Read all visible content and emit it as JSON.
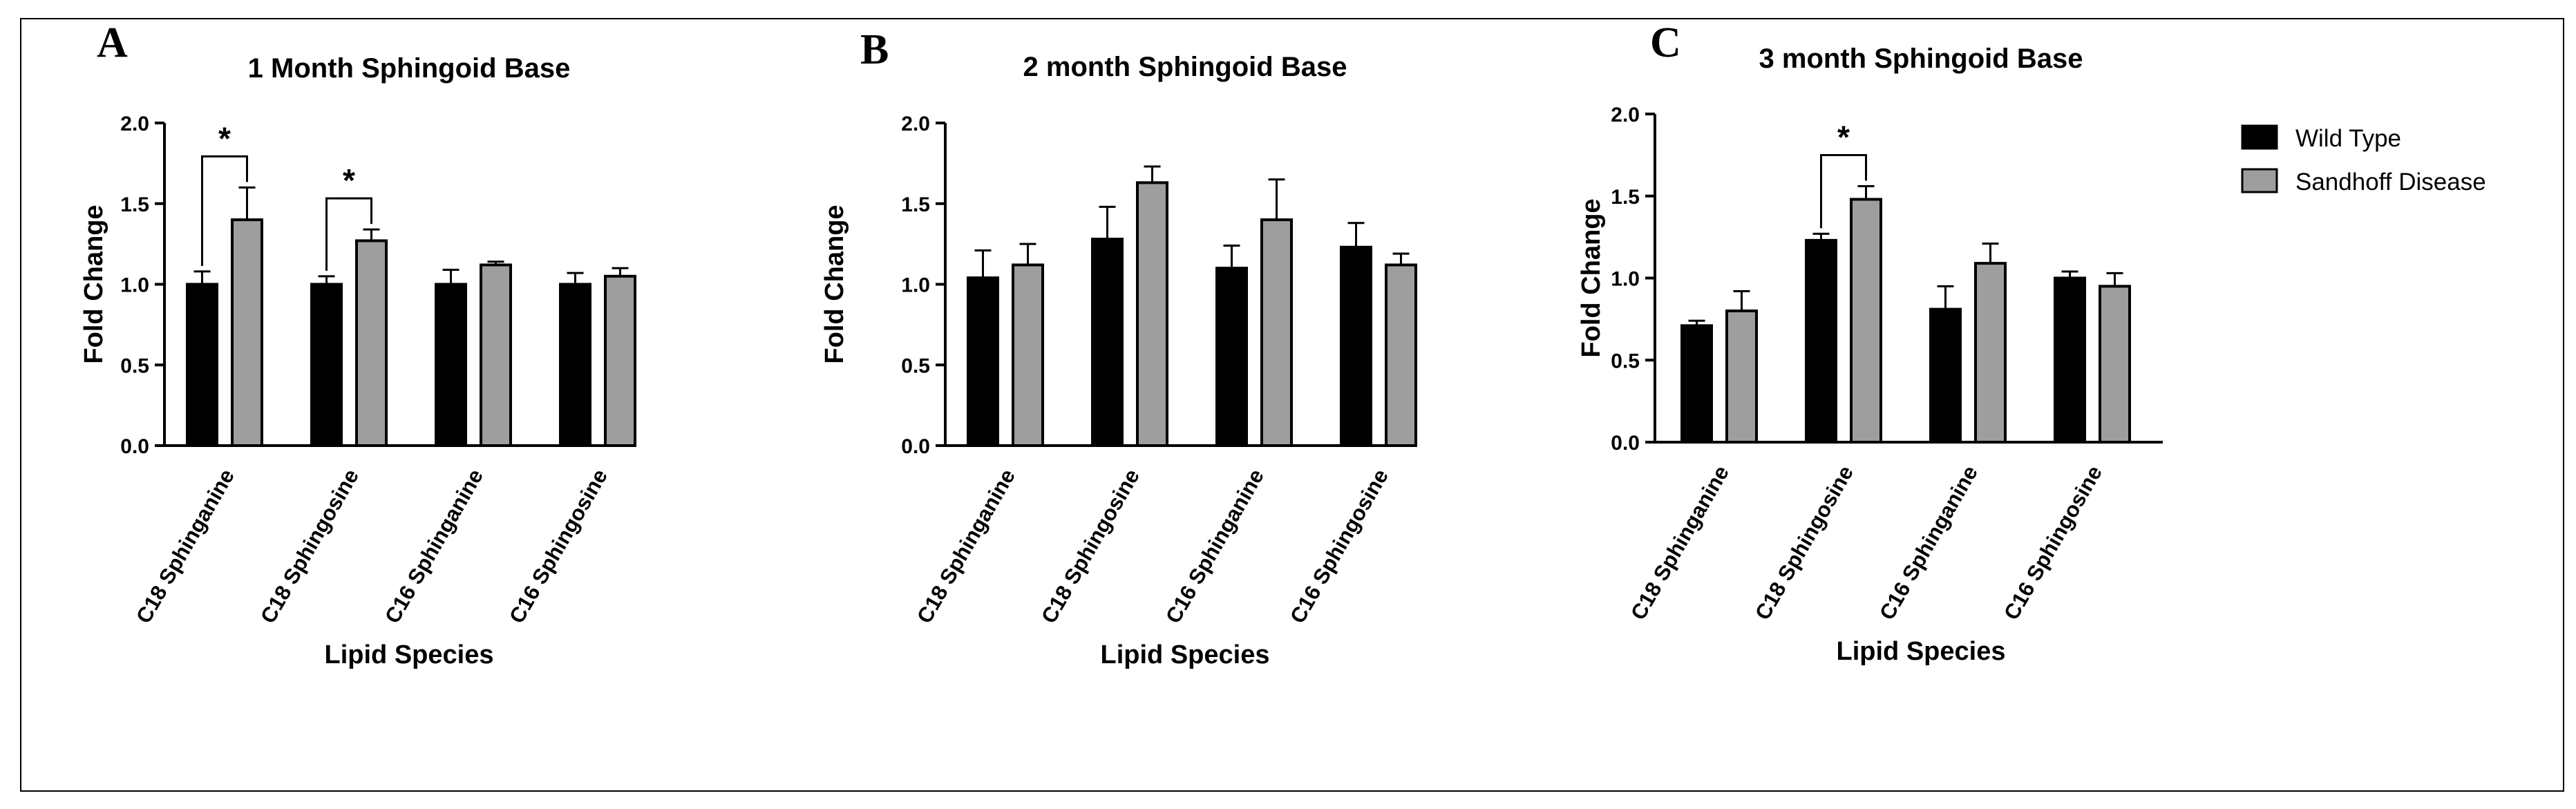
{
  "panels": [
    {
      "letter": "A"
    },
    {
      "letter": "B"
    },
    {
      "letter": "C"
    }
  ],
  "legend": {
    "items": [
      {
        "label": "Wild Type",
        "color": "#000000"
      },
      {
        "label": "Sandhoff Disease",
        "color": "#9e9e9e"
      }
    ]
  },
  "chart_data": [
    {
      "type": "bar",
      "title": "1 Month Sphingoid Base",
      "xlabel": "Lipid Species",
      "ylabel": "Fold Change",
      "ylim": [
        0,
        2.0
      ],
      "yticks": [
        "0.0",
        "0.5",
        "1.0",
        "1.5",
        "2.0"
      ],
      "categories": [
        "C18 Sphinganine",
        "C18 Sphingosine",
        "C16 Sphinganine",
        "C16 Sphingosine"
      ],
      "series": [
        {
          "name": "Wild Type",
          "color": "#000000",
          "values": [
            1.0,
            1.0,
            1.0,
            1.0
          ],
          "errors": [
            0.08,
            0.05,
            0.09,
            0.07
          ]
        },
        {
          "name": "Sandhoff Disease",
          "color": "#9e9e9e",
          "values": [
            1.4,
            1.27,
            1.12,
            1.05
          ],
          "errors": [
            0.2,
            0.07,
            0.02,
            0.05
          ]
        }
      ],
      "significance": [
        {
          "category": 0,
          "label": "*"
        },
        {
          "category": 1,
          "label": "*"
        }
      ]
    },
    {
      "type": "bar",
      "title": "2 month Sphingoid Base",
      "xlabel": "Lipid Species",
      "ylabel": "Fold Change",
      "ylim": [
        0,
        2.0
      ],
      "yticks": [
        "0.0",
        "0.5",
        "1.0",
        "1.5",
        "2.0"
      ],
      "categories": [
        "C18 Sphinganine",
        "C18 Sphingosine",
        "C16 Sphinganine",
        "C16 Sphingosine"
      ],
      "series": [
        {
          "name": "Wild Type",
          "color": "#000000",
          "values": [
            1.04,
            1.28,
            1.1,
            1.23
          ],
          "errors": [
            0.17,
            0.2,
            0.14,
            0.15
          ]
        },
        {
          "name": "Sandhoff Disease",
          "color": "#9e9e9e",
          "values": [
            1.12,
            1.63,
            1.4,
            1.12
          ],
          "errors": [
            0.13,
            0.1,
            0.25,
            0.07
          ]
        }
      ],
      "significance": []
    },
    {
      "type": "bar",
      "title": "3 month Sphingoid Base",
      "xlabel": "Lipid Species",
      "ylabel": "Fold Change",
      "ylim": [
        0,
        2.0
      ],
      "yticks": [
        "0.0",
        "0.5",
        "1.0",
        "1.5",
        "2.0"
      ],
      "categories": [
        "C18 Sphinganine",
        "C18 Sphingosine",
        "C16 Sphinganine",
        "C16 Sphingosine"
      ],
      "series": [
        {
          "name": "Wild Type",
          "color": "#000000",
          "values": [
            0.71,
            1.23,
            0.81,
            1.0
          ],
          "errors": [
            0.03,
            0.04,
            0.14,
            0.04
          ]
        },
        {
          "name": "Sandhoff Disease",
          "color": "#9e9e9e",
          "values": [
            0.8,
            1.48,
            1.09,
            0.95
          ],
          "errors": [
            0.12,
            0.08,
            0.12,
            0.08
          ]
        }
      ],
      "significance": [
        {
          "category": 1,
          "label": "*"
        }
      ]
    }
  ]
}
